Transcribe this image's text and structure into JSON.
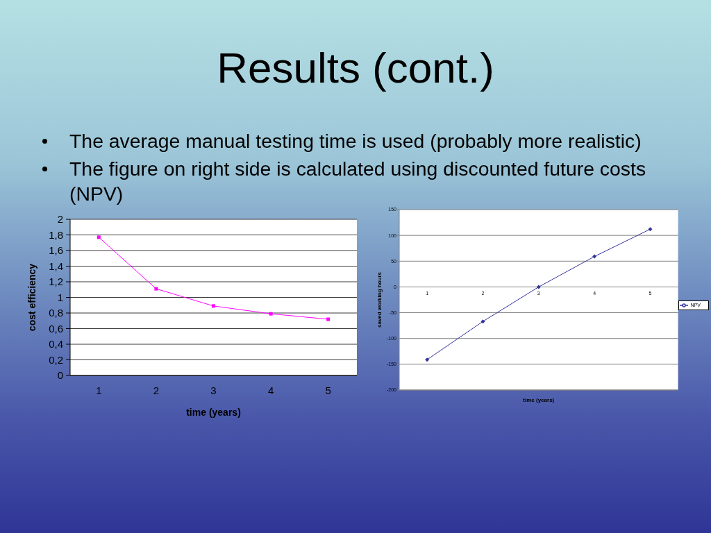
{
  "chart_data": [
    {
      "type": "line",
      "title": "Results (cont.)",
      "annotations": [
        "The average manual testing time is used (probably more realistic)",
        "The figure on right side is calculated using discounted future costs (NPV)"
      ],
      "categories": [
        "1",
        "2",
        "3",
        "4",
        "5"
      ],
      "values": [
        1.77,
        1.11,
        0.89,
        0.79,
        0.72
      ],
      "color": "#ff00ff",
      "xlabel": "time (years)",
      "ylabel": "cost efficiency",
      "ylim": [
        0,
        2
      ],
      "yticks": [
        0,
        {
          "value": 0.2,
          "label": "0,2"
        },
        {
          "value": 0.4,
          "label": "0,4"
        },
        {
          "value": 0.6,
          "label": "0,6"
        },
        {
          "value": 0.8,
          "label": "0,8"
        },
        1,
        {
          "value": 1.2,
          "label": "1,2"
        },
        {
          "value": 1.4,
          "label": "1,4"
        },
        {
          "value": 1.6,
          "label": "1,6"
        },
        {
          "value": 1.8,
          "label": "1,8"
        },
        2
      ],
      "grid": "y",
      "marker": "square"
    },
    {
      "type": "line",
      "categories": [
        "1",
        "2",
        "3",
        "4",
        "5"
      ],
      "series": [
        {
          "name": "NPV",
          "color": "#333399",
          "values": [
            -141,
            -67,
            0,
            59,
            112
          ]
        }
      ],
      "xlabel": "time (years)",
      "ylabel": "saved working hours",
      "ylim": [
        -200,
        150
      ],
      "yticks": [
        -200,
        -150,
        -100,
        -50,
        0,
        50,
        100,
        150
      ],
      "grid": "y",
      "legend": "right",
      "marker": "diamond"
    }
  ]
}
